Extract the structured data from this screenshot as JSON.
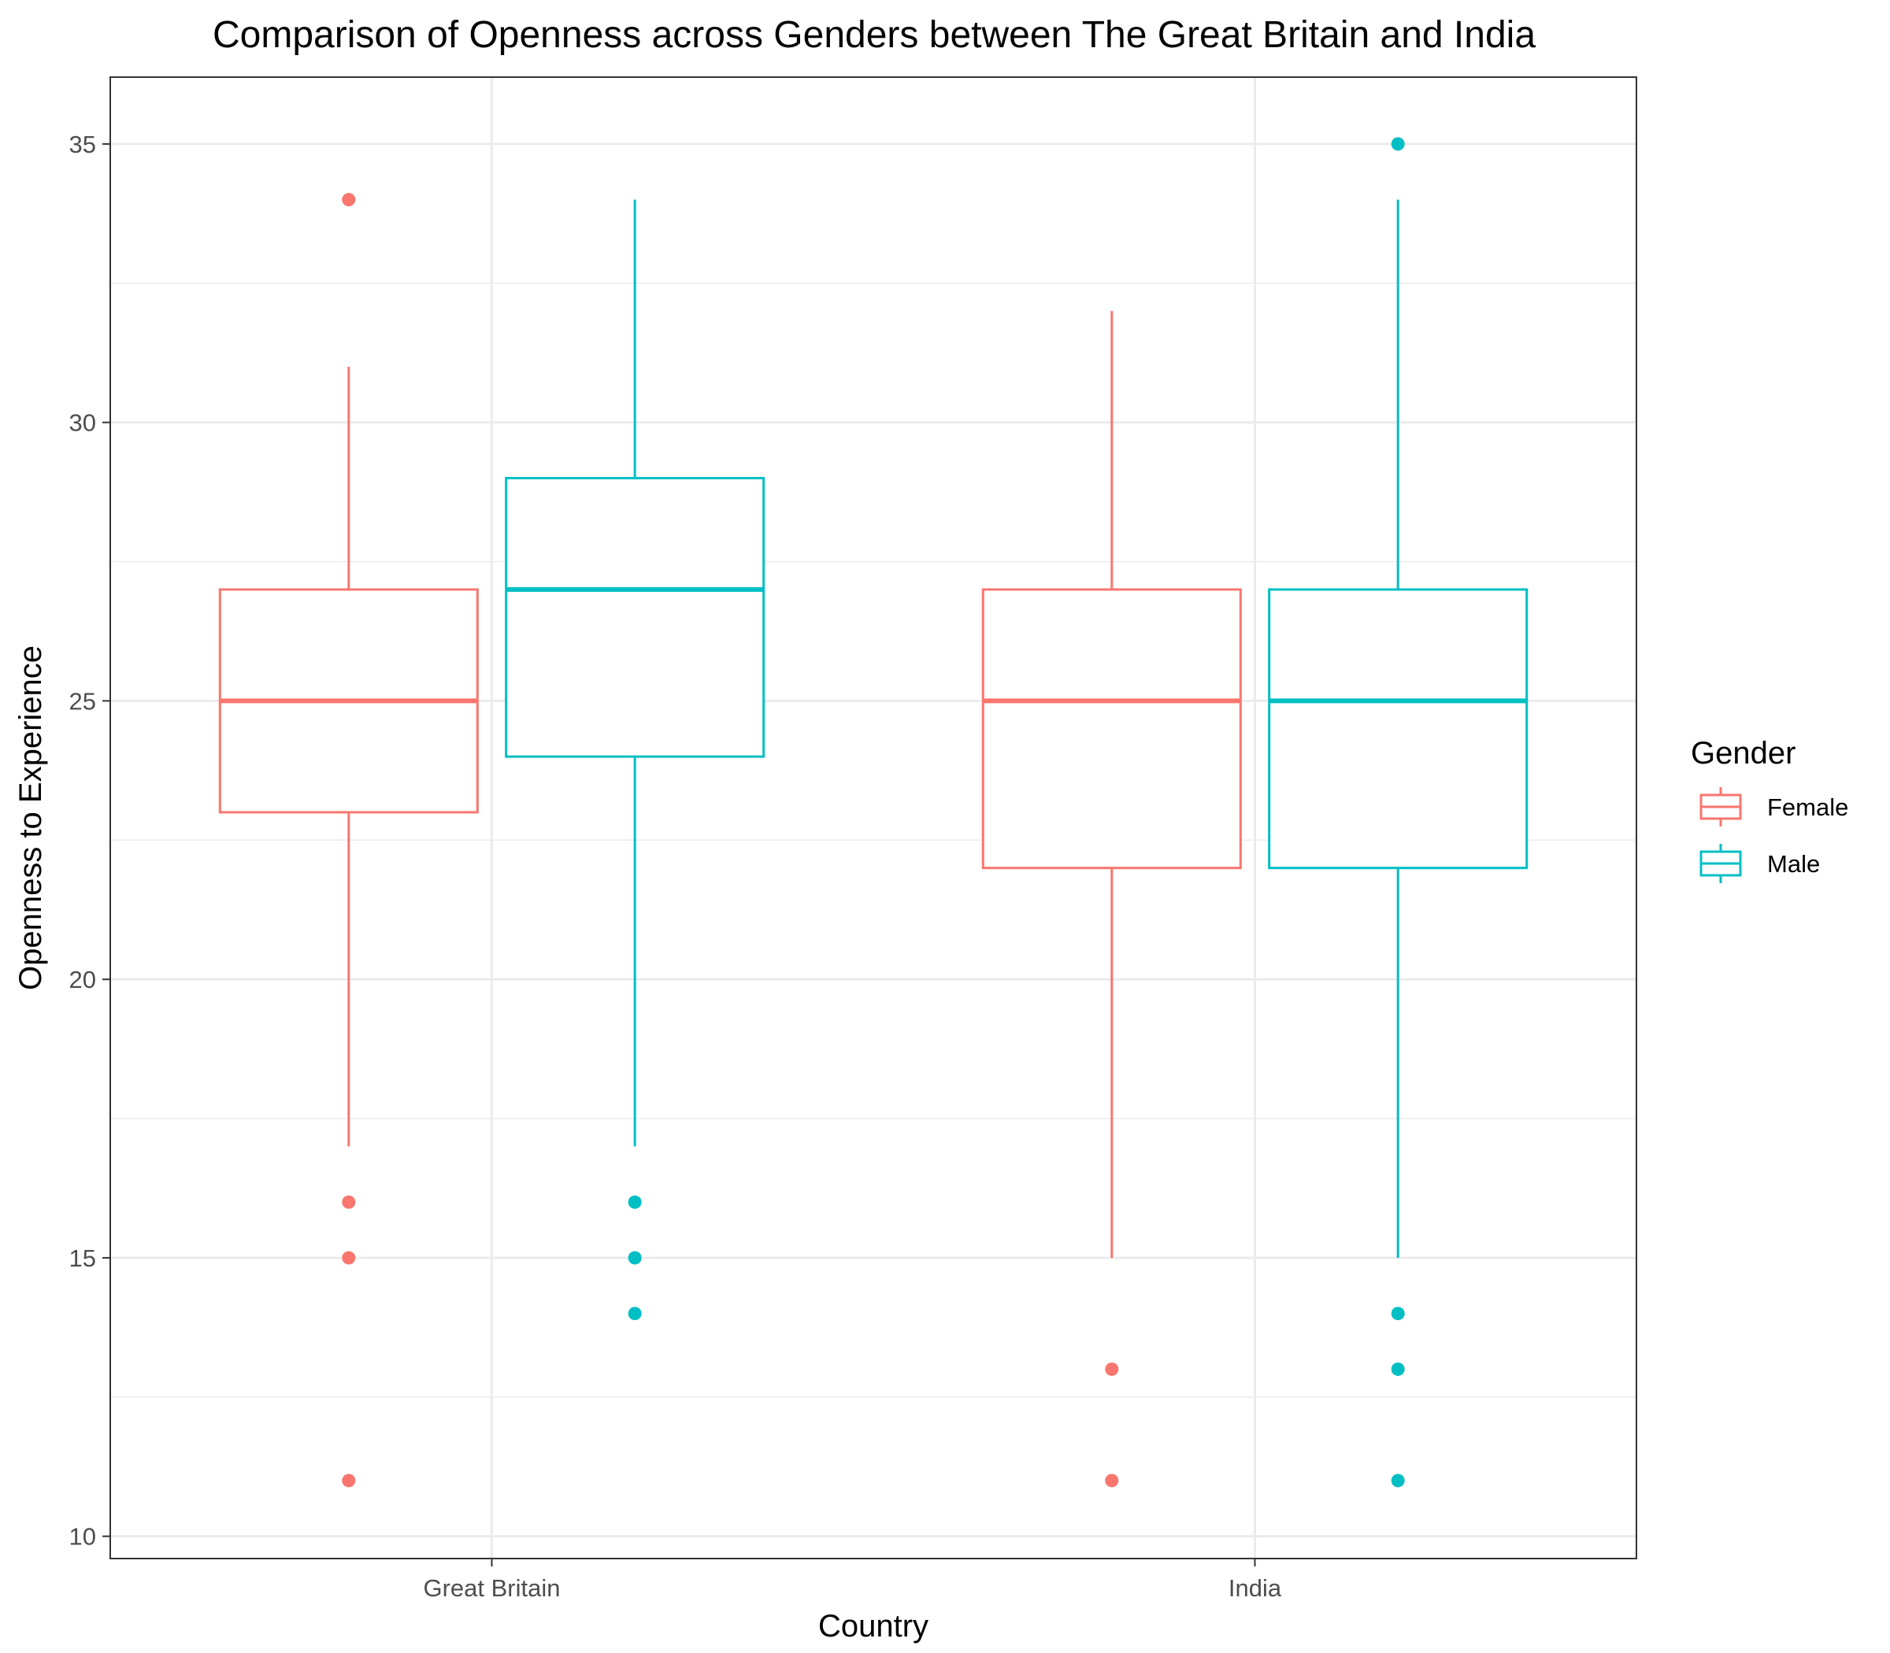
{
  "chart_data": {
    "type": "boxplot",
    "title": "Comparison of Openness across Genders between The Great Britain and India",
    "xlabel": "Country",
    "ylabel": "Openness to Experience",
    "categories": [
      "Great Britain",
      "India"
    ],
    "ylim": [
      9.6,
      36.2
    ],
    "yticks": [
      10,
      15,
      20,
      25,
      30,
      35
    ],
    "grid": true,
    "legend": {
      "title": "Gender",
      "position": "right",
      "entries": [
        "Female",
        "Male"
      ]
    },
    "series": [
      {
        "name": "Female",
        "color": "#F8766D",
        "boxes": [
          {
            "category": "Great Britain",
            "whisker_low": 17,
            "q1": 23,
            "median": 25,
            "q3": 27,
            "whisker_high": 31,
            "outliers": [
              34,
              16,
              15,
              11
            ]
          },
          {
            "category": "India",
            "whisker_low": 15,
            "q1": 22,
            "median": 25,
            "q3": 27,
            "whisker_high": 32,
            "outliers": [
              13,
              11
            ]
          }
        ]
      },
      {
        "name": "Male",
        "color": "#00BFC4",
        "boxes": [
          {
            "category": "Great Britain",
            "whisker_low": 17,
            "q1": 24,
            "median": 27,
            "q3": 29,
            "whisker_high": 34,
            "outliers": [
              16,
              15,
              14
            ]
          },
          {
            "category": "India",
            "whisker_low": 15,
            "q1": 22,
            "median": 25,
            "q3": 27,
            "whisker_high": 34,
            "outliers": [
              35,
              14,
              13,
              11
            ]
          }
        ]
      }
    ]
  }
}
